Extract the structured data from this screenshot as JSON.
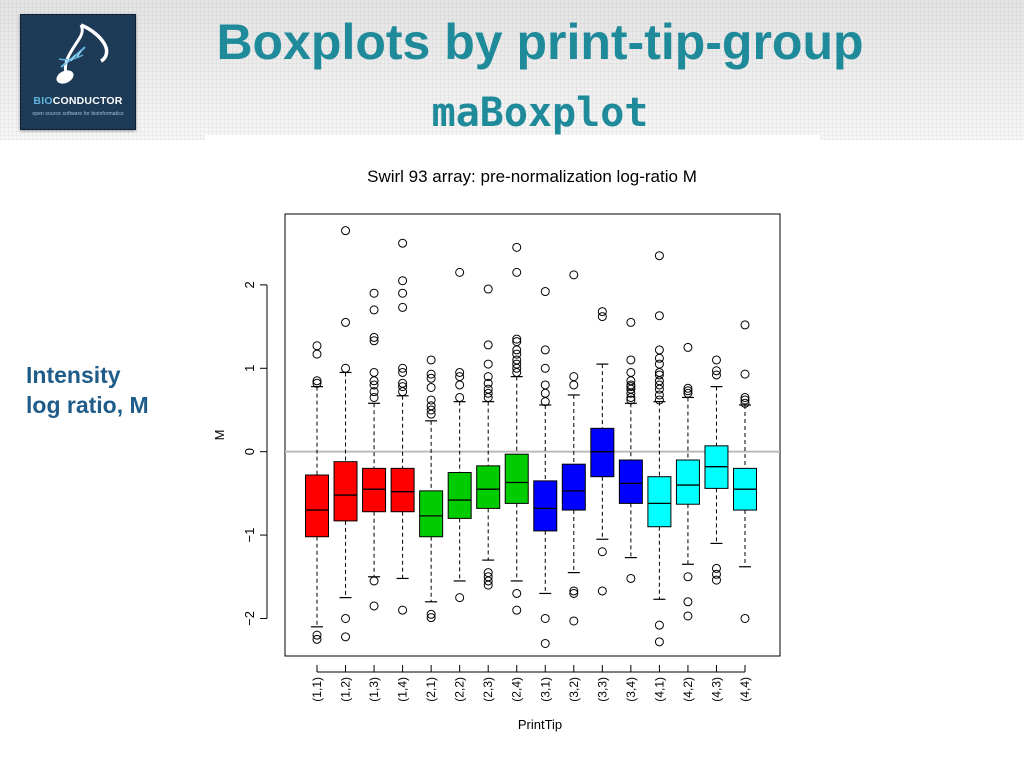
{
  "slide": {
    "title": "Boxplots by print-tip-group",
    "subtitle": "maBoxplot",
    "side_label_line1": "Intensity",
    "side_label_line2": "log ratio, M"
  },
  "logo": {
    "text_bio": "BIO",
    "text_conductor": "CONDUCTOR",
    "tagline": "open source software for bioinformatics"
  },
  "colors": {
    "title": "#1e8a9a",
    "side_label": "#1f5c8a",
    "red": "#ff0000",
    "green": "#00cc00",
    "blue": "#0000ff",
    "cyan": "#00ffff",
    "zero_line": "#bbbbbb"
  },
  "chart_data": {
    "type": "boxplot",
    "title": "Swirl 93 array: pre-normalization log-ratio M",
    "xlabel": "PrintTip",
    "ylabel": "M",
    "ylim": [
      -2.45,
      2.85
    ],
    "yticks": [
      -2,
      -1,
      0,
      1,
      2
    ],
    "reference_line": 0,
    "grid": false,
    "categories": [
      "(1,1)",
      "(1,2)",
      "(1,3)",
      "(1,4)",
      "(2,1)",
      "(2,2)",
      "(2,3)",
      "(2,4)",
      "(3,1)",
      "(3,2)",
      "(3,3)",
      "(3,4)",
      "(4,1)",
      "(4,2)",
      "(4,3)",
      "(4,4)"
    ],
    "box_colors": [
      "red",
      "red",
      "red",
      "red",
      "green",
      "green",
      "green",
      "green",
      "blue",
      "blue",
      "blue",
      "blue",
      "cyan",
      "cyan",
      "cyan",
      "cyan"
    ],
    "boxes": [
      {
        "whisker_low": -2.1,
        "q1": -1.02,
        "median": -0.7,
        "q3": -0.28,
        "whisker_high": 0.78,
        "outliers": [
          -2.2,
          -2.25,
          0.82,
          0.85,
          1.17,
          1.27
        ]
      },
      {
        "whisker_low": -1.75,
        "q1": -0.83,
        "median": -0.52,
        "q3": -0.12,
        "whisker_high": 0.95,
        "outliers": [
          -2.0,
          -2.22,
          1.0,
          1.55,
          2.65
        ]
      },
      {
        "whisker_low": -1.5,
        "q1": -0.72,
        "median": -0.45,
        "q3": -0.2,
        "whisker_high": 0.58,
        "outliers": [
          -1.55,
          -1.85,
          0.65,
          0.72,
          0.8,
          0.85,
          0.95,
          1.33,
          1.37,
          1.7,
          1.9
        ]
      },
      {
        "whisker_low": -1.52,
        "q1": -0.72,
        "median": -0.48,
        "q3": -0.2,
        "whisker_high": 0.67,
        "outliers": [
          -1.9,
          0.72,
          0.78,
          0.82,
          0.95,
          1.0,
          1.73,
          1.9,
          2.05,
          2.5
        ]
      },
      {
        "whisker_low": -1.8,
        "q1": -1.02,
        "median": -0.77,
        "q3": -0.47,
        "whisker_high": 0.37,
        "outliers": [
          -1.95,
          -1.99,
          0.45,
          0.5,
          0.55,
          0.62,
          0.77,
          0.88,
          0.93,
          1.1
        ]
      },
      {
        "whisker_low": -1.55,
        "q1": -0.8,
        "median": -0.58,
        "q3": -0.25,
        "whisker_high": 0.6,
        "outliers": [
          -1.75,
          0.65,
          0.8,
          0.9,
          0.95,
          2.15
        ]
      },
      {
        "whisker_low": -1.3,
        "q1": -0.68,
        "median": -0.45,
        "q3": -0.17,
        "whisker_high": 0.6,
        "outliers": [
          -1.45,
          -1.5,
          -1.55,
          -1.6,
          0.65,
          0.7,
          0.75,
          0.82,
          0.9,
          1.05,
          1.28,
          1.95
        ]
      },
      {
        "whisker_low": -1.55,
        "q1": -0.62,
        "median": -0.37,
        "q3": -0.03,
        "whisker_high": 0.9,
        "outliers": [
          -1.7,
          -1.9,
          0.95,
          1.0,
          1.05,
          1.1,
          1.17,
          1.22,
          1.32,
          1.35,
          2.15,
          2.45
        ]
      },
      {
        "whisker_low": -1.7,
        "q1": -0.95,
        "median": -0.68,
        "q3": -0.35,
        "whisker_high": 0.56,
        "outliers": [
          -2.0,
          -2.3,
          0.6,
          0.7,
          0.8,
          1.0,
          1.22,
          1.92
        ]
      },
      {
        "whisker_low": -1.45,
        "q1": -0.7,
        "median": -0.47,
        "q3": -0.15,
        "whisker_high": 0.68,
        "outliers": [
          -1.67,
          -1.7,
          -2.03,
          0.8,
          0.9,
          2.12
        ]
      },
      {
        "whisker_low": -1.05,
        "q1": -0.3,
        "median": 0.0,
        "q3": 0.28,
        "whisker_high": 1.05,
        "outliers": [
          -1.2,
          -1.67,
          1.62,
          1.68
        ]
      },
      {
        "whisker_low": -1.27,
        "q1": -0.62,
        "median": -0.38,
        "q3": -0.1,
        "whisker_high": 0.58,
        "outliers": [
          -1.52,
          0.62,
          0.65,
          0.7,
          0.75,
          0.78,
          0.8,
          0.85,
          0.95,
          1.1,
          1.55
        ]
      },
      {
        "whisker_low": -1.77,
        "q1": -0.9,
        "median": -0.62,
        "q3": -0.3,
        "whisker_high": 0.6,
        "outliers": [
          -2.08,
          -2.28,
          0.62,
          0.68,
          0.75,
          0.8,
          0.85,
          0.92,
          0.95,
          1.05,
          1.12,
          1.22,
          1.63,
          2.35
        ]
      },
      {
        "whisker_low": -1.35,
        "q1": -0.63,
        "median": -0.4,
        "q3": -0.1,
        "whisker_high": 0.65,
        "outliers": [
          -1.5,
          -1.8,
          -1.97,
          0.7,
          0.73,
          0.76,
          1.25
        ]
      },
      {
        "whisker_low": -1.1,
        "q1": -0.44,
        "median": -0.18,
        "q3": 0.07,
        "whisker_high": 0.78,
        "outliers": [
          -1.4,
          -1.47,
          -1.54,
          0.92,
          0.97,
          1.1
        ]
      },
      {
        "whisker_low": -1.38,
        "q1": -0.7,
        "median": -0.45,
        "q3": -0.2,
        "whisker_high": 0.56,
        "outliers": [
          -2.0,
          0.58,
          0.62,
          0.65,
          0.93,
          1.52
        ]
      }
    ]
  }
}
